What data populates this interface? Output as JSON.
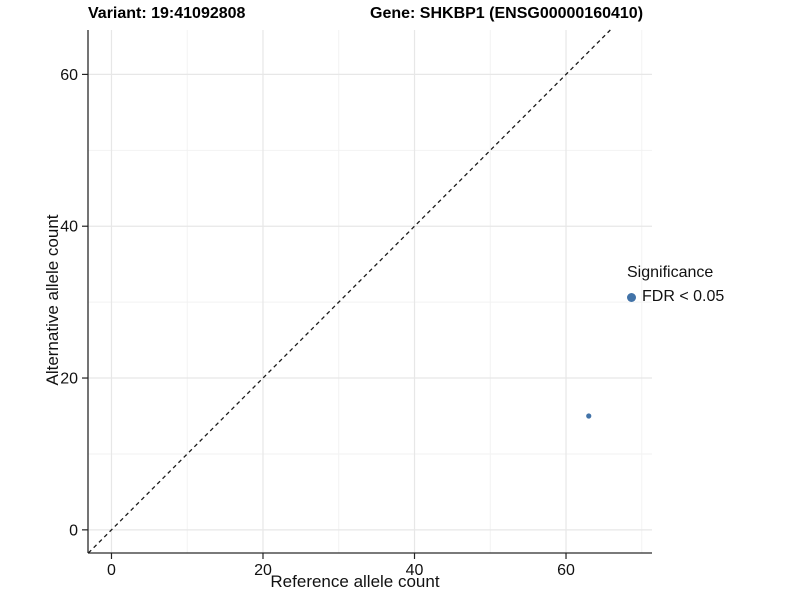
{
  "titles": {
    "variant": "Variant: 19:41092808",
    "gene": "Gene: SHKBP1 (ENSG00000160410)"
  },
  "axes": {
    "x_title": "Reference allele count",
    "y_title": "Alternative allele count"
  },
  "legend": {
    "title": "Significance",
    "items": [
      {
        "label": "FDR < 0.05",
        "color": "#4273a8"
      }
    ]
  },
  "chart_data": {
    "type": "scatter",
    "title": "Variant: 19:41092808 — Gene: SHKBP1 (ENSG00000160410)",
    "xlabel": "Reference allele count",
    "ylabel": "Alternative allele count",
    "xlim": [
      -3.1,
      71.35
    ],
    "ylim": [
      -3.05,
      65.85
    ],
    "xticks": [
      0,
      20,
      40,
      60
    ],
    "yticks": [
      0,
      20,
      40,
      60
    ],
    "xminor": [
      10,
      30,
      50,
      70
    ],
    "yminor": [
      10,
      30,
      50
    ],
    "grid": true,
    "legend_position": "right",
    "series": [
      {
        "name": "FDR < 0.05",
        "color": "#4273a8",
        "points": [
          {
            "x": 63,
            "y": 15
          }
        ]
      }
    ],
    "reference_line": {
      "kind": "identity",
      "slope": 1,
      "intercept": 0,
      "style": "dashed",
      "color": "#1c1c1c"
    }
  }
}
